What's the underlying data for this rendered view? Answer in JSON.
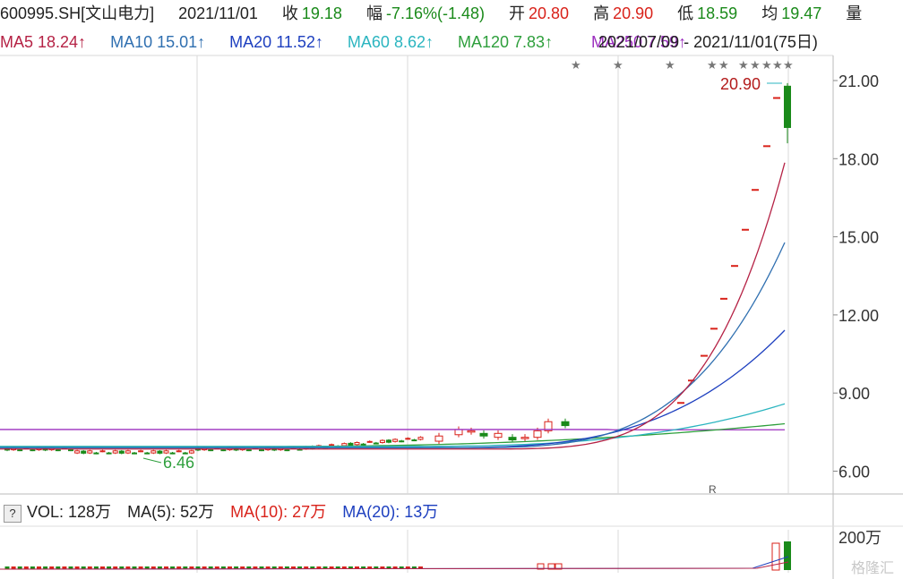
{
  "header": {
    "code": "600995.SH[文山电力]",
    "date": "2021/11/01",
    "close_label": "收",
    "close": "19.18",
    "change_label": "幅",
    "change": "-7.16%(-1.48)",
    "open_label": "开",
    "open": "20.80",
    "high_label": "高",
    "high": "20.90",
    "low_label": "低",
    "low": "18.59",
    "avg_label": "均",
    "avg": "19.47",
    "vol_label": "量"
  },
  "ma_header": {
    "ma5": "MA5 18.24↑",
    "ma10": "MA10 15.01↑",
    "ma20": "MA20 11.52↑",
    "ma60": "MA60 8.62↑",
    "ma120": "MA120 7.83↑",
    "ma250_overlap": "MA250 7.59↑",
    "range_overlap": "2021/07/09 - 2021/11/01(75日)"
  },
  "volume_header": {
    "help_icon": "?",
    "vol": "VOL: 128万",
    "ma5": "MA(5): 52万",
    "ma10": "MA(10): 27万",
    "ma20": "MA(20): 13万"
  },
  "colors": {
    "up": "#d9221a",
    "down": "#1a8a1a",
    "ma5": "#b52245",
    "ma10": "#2f6fb0",
    "ma20": "#1d3fbf",
    "ma60": "#2bb5c0",
    "ma120": "#2e9f3c",
    "ma250": "#9c2fbf",
    "grid": "#d9d9d9",
    "axis_text": "#333333"
  },
  "marks": {
    "high_label": "20.90",
    "low_label": "6.46",
    "r_marker": "R",
    "watermark": "格隆汇"
  },
  "chart_data": {
    "type": "candlestick",
    "title": "600995.SH[文山电力]",
    "period": "2021/07/09 - 2021/11/01 (75日)",
    "y_ticks": [
      "21.00",
      "18.00",
      "15.00",
      "12.00",
      "9.00",
      "6.00"
    ],
    "ylim": [
      5.5,
      21.5
    ],
    "volume_ticks": [
      "200万"
    ],
    "grid": true,
    "last_candle": {
      "date": "2021/11/01",
      "open": 20.8,
      "high": 20.9,
      "low": 18.59,
      "close": 19.18
    },
    "highest": 20.9,
    "lowest": 6.46,
    "limit_up_streak": [
      8.62,
      9.48,
      10.43,
      11.47,
      12.62,
      13.88,
      15.27,
      16.8,
      18.48,
      20.33
    ],
    "series": [
      {
        "name": "MA5",
        "last": 18.24
      },
      {
        "name": "MA10",
        "last": 15.01
      },
      {
        "name": "MA20",
        "last": 11.52
      },
      {
        "name": "MA60",
        "last": 8.62
      },
      {
        "name": "MA120",
        "last": 7.83
      },
      {
        "name": "MA250",
        "last": 7.59
      }
    ],
    "volume": {
      "last": "128万",
      "ma5": "52万",
      "ma10": "27万",
      "ma20": "13万"
    }
  }
}
